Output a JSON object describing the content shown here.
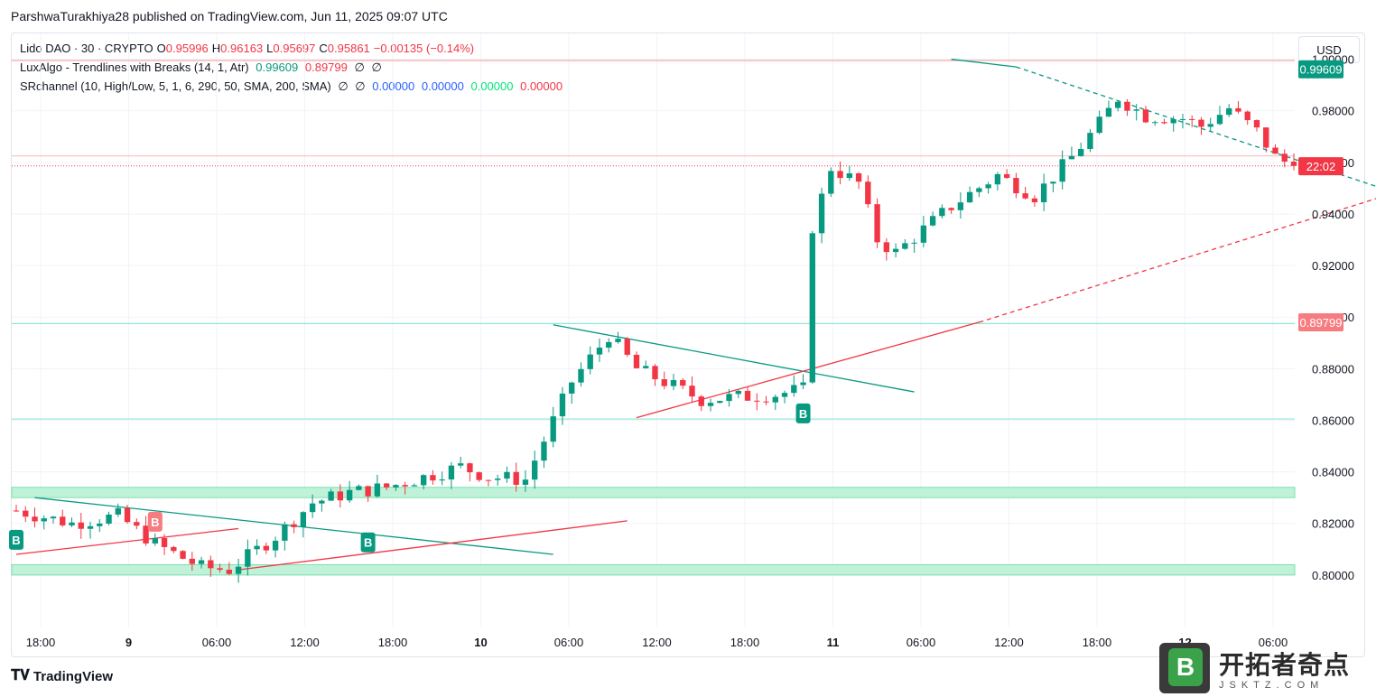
{
  "header": {
    "text": "ParshwaTurakhiya28 published on TradingView.com, Jun 11, 2025 09:07 UTC"
  },
  "currency": "USD",
  "legend": {
    "line1": {
      "symbol": "Lido DAO · 30 · CRYPTO",
      "o_label": "O",
      "o_value": "0.95996",
      "h_label": "H",
      "h_value": "0.96163",
      "l_label": "L",
      "l_value": "0.95697",
      "c_label": "C",
      "c_value": "0.95861",
      "change": "−0.00135 (−0.14%)"
    },
    "line2": {
      "name": "LuxAlgo - Trendlines with Breaks (14, 1, Atr)",
      "v1": "0.99609",
      "v2": "0.89799",
      "v3": "∅",
      "v4": "∅"
    },
    "line3": {
      "name": "SRchannel (10, High/Low, 5, 1, 6, 290, 50, SMA, 200, SMA)",
      "v1": "∅",
      "v2": "∅",
      "v3": "0.00000",
      "v4": "0.00000",
      "v5": "0.00000",
      "v6": "0.00000"
    }
  },
  "footer": {
    "brand": "TradingView"
  },
  "watermark": {
    "cn": "开拓者奇点",
    "url": "JSKTZ.COM",
    "letter": "B"
  },
  "colors": {
    "up": "#089981",
    "down": "#f23645",
    "support": "#00e676",
    "text": "#131722"
  },
  "chart_data": {
    "type": "candlestick",
    "symbol": "Lido DAO",
    "interval": "30",
    "ylim": [
      0.78,
      1.01
    ],
    "y_ticks": [
      "1.00000",
      "0.98000",
      "0.96000",
      "0.94000",
      "0.92000",
      "0.90000",
      "0.88000",
      "0.86000",
      "0.84000",
      "0.82000",
      "0.80000"
    ],
    "x_ticks": [
      "18:00",
      "9",
      "06:00",
      "12:00",
      "18:00",
      "10",
      "06:00",
      "12:00",
      "18:00",
      "11",
      "06:00",
      "12:00",
      "18:00",
      "12",
      "06:00"
    ],
    "price_tags": {
      "upper_trend": "0.99609",
      "countdown": "22:02",
      "lower_trend": "0.89799"
    },
    "anchors": [
      {
        "t": 0,
        "v": 0.825
      },
      {
        "t": 6,
        "v": 0.82
      },
      {
        "t": 11,
        "v": 0.823
      },
      {
        "t": 15,
        "v": 0.812
      },
      {
        "t": 20,
        "v": 0.803
      },
      {
        "t": 23,
        "v": 0.802
      },
      {
        "t": 28,
        "v": 0.815
      },
      {
        "t": 32,
        "v": 0.828
      },
      {
        "t": 36,
        "v": 0.832
      },
      {
        "t": 40,
        "v": 0.834
      },
      {
        "t": 45,
        "v": 0.839
      },
      {
        "t": 48,
        "v": 0.842
      },
      {
        "t": 51,
        "v": 0.838
      },
      {
        "t": 55,
        "v": 0.837
      },
      {
        "t": 60,
        "v": 0.875
      },
      {
        "t": 64,
        "v": 0.893
      },
      {
        "t": 67,
        "v": 0.88
      },
      {
        "t": 74,
        "v": 0.868
      },
      {
        "t": 82,
        "v": 0.87
      },
      {
        "t": 85,
        "v": 0.872
      },
      {
        "t": 86,
        "v": 0.935
      },
      {
        "t": 88,
        "v": 0.958
      },
      {
        "t": 91,
        "v": 0.952
      },
      {
        "t": 93,
        "v": 0.93
      },
      {
        "t": 95,
        "v": 0.925
      },
      {
        "t": 101,
        "v": 0.943
      },
      {
        "t": 106,
        "v": 0.955
      },
      {
        "t": 110,
        "v": 0.947
      },
      {
        "t": 114,
        "v": 0.962
      },
      {
        "t": 117,
        "v": 0.975
      },
      {
        "t": 119,
        "v": 0.985
      },
      {
        "t": 122,
        "v": 0.978
      },
      {
        "t": 126,
        "v": 0.977
      },
      {
        "t": 128,
        "v": 0.974
      },
      {
        "t": 131,
        "v": 0.981
      },
      {
        "t": 134,
        "v": 0.972
      },
      {
        "t": 136,
        "v": 0.962
      },
      {
        "t": 138,
        "v": 0.9586
      }
    ],
    "candle_count": 139,
    "last_close": 0.95861,
    "support_zones": [
      [
        0.83,
        0.834
      ],
      [
        0.8,
        0.804
      ]
    ],
    "lines": {
      "resistance_top": 0.9995,
      "resistance_mid": 0.9625,
      "support_1": 0.8975,
      "support_2": 0.8605
    },
    "signals": [
      {
        "label": "B",
        "type": "buy",
        "t": 0,
        "v": 0.814
      },
      {
        "label": "B",
        "type": "break-down",
        "t": 15,
        "v": 0.821
      },
      {
        "label": "B",
        "type": "buy",
        "t": 38,
        "v": 0.813
      },
      {
        "label": "B",
        "type": "buy",
        "t": 85,
        "v": 0.863
      }
    ]
  }
}
